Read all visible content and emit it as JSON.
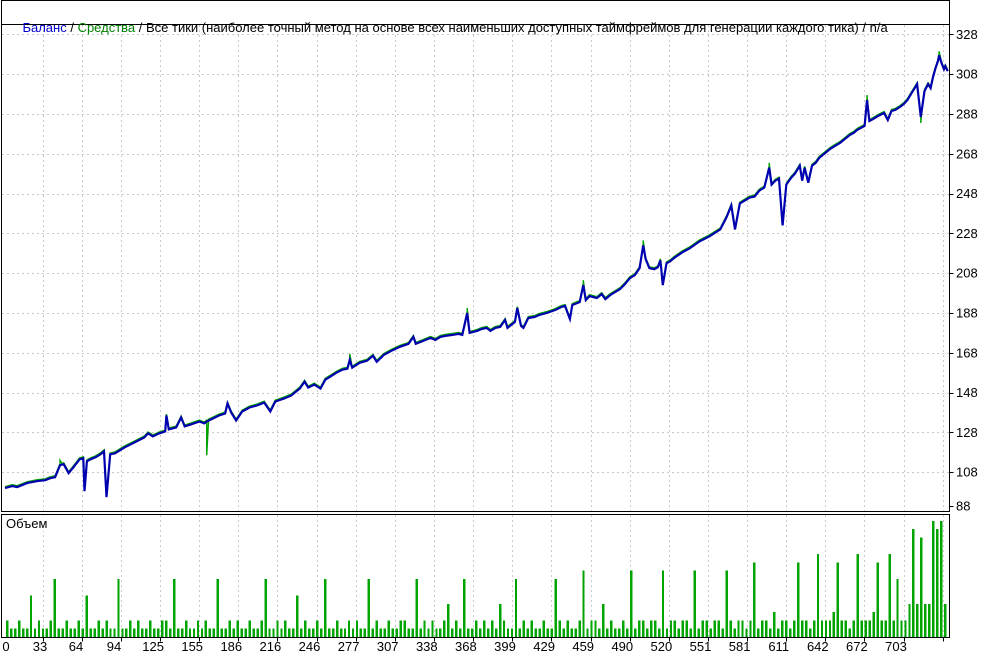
{
  "legend": {
    "balance": "Баланс",
    "equity": "Средства",
    "model": "Все тики (наиболее точный метод на основе всех наименьших доступных таймфреймов для генерации каждого тика)",
    "na": "n/a",
    "sep": " / "
  },
  "volume_panel": {
    "label": "Объем"
  },
  "colors": {
    "balance_line": "#0000b0",
    "equity_line": "#00a000",
    "volume_bar": "#00a400",
    "legend_balance": "#0000c8",
    "legend_equity": "#008000",
    "grid": "#c9c9c9",
    "border": "#000000"
  },
  "chart_data": {
    "type": "line+bar",
    "title": "Баланс / Средства / Все тики (наиболее точный метод на основе всех наименьших доступных таймфреймов для генерации каждого тика) / n/a",
    "x_axis": {
      "labels": [
        0,
        33,
        64,
        94,
        125,
        155,
        186,
        216,
        246,
        277,
        307,
        338,
        368,
        399,
        429,
        459,
        490,
        520,
        551,
        581,
        611,
        642,
        672,
        703
      ],
      "min": 0,
      "max": 771
    },
    "y_axis": {
      "labels": [
        88,
        108,
        128,
        148,
        168,
        188,
        208,
        228,
        248,
        268,
        288,
        308,
        328
      ],
      "min": 88,
      "max": 328
    },
    "grid": "dashed",
    "legend_position": "top-left",
    "series": [
      {
        "name": "Баланс",
        "color": "#0000b0",
        "points": [
          [
            0,
            100
          ],
          [
            6,
            101
          ],
          [
            10,
            100.5
          ],
          [
            18,
            102.5
          ],
          [
            26,
            103.5
          ],
          [
            33,
            104
          ],
          [
            37,
            105
          ],
          [
            41,
            105.5
          ],
          [
            45,
            111.5
          ],
          [
            48,
            112
          ],
          [
            52,
            107.5
          ],
          [
            56,
            110.5
          ],
          [
            61,
            114.5
          ],
          [
            64,
            115
          ],
          [
            65,
            98.5
          ],
          [
            67,
            113.5
          ],
          [
            70,
            114.5
          ],
          [
            74,
            115.5
          ],
          [
            78,
            117
          ],
          [
            81,
            118.5
          ],
          [
            83,
            95.5
          ],
          [
            86,
            117
          ],
          [
            90,
            117.5
          ],
          [
            98,
            120.5
          ],
          [
            106,
            123
          ],
          [
            114,
            125.5
          ],
          [
            117,
            127.5
          ],
          [
            121,
            126
          ],
          [
            126,
            127.5
          ],
          [
            131,
            128.5
          ],
          [
            132,
            136.5
          ],
          [
            134,
            129.5
          ],
          [
            140,
            130.5
          ],
          [
            144,
            135.5
          ],
          [
            147,
            131
          ],
          [
            152,
            132
          ],
          [
            159,
            133.5
          ],
          [
            163,
            132.5
          ],
          [
            165,
            133.5
          ],
          [
            170,
            135
          ],
          [
            175,
            136.5
          ],
          [
            180,
            137.5
          ],
          [
            182,
            142.5
          ],
          [
            185,
            138
          ],
          [
            189,
            134
          ],
          [
            194,
            138.5
          ],
          [
            200,
            140.5
          ],
          [
            206,
            141.5
          ],
          [
            212,
            143
          ],
          [
            217,
            138.5
          ],
          [
            221,
            143.5
          ],
          [
            228,
            145
          ],
          [
            234,
            146.5
          ],
          [
            241,
            150
          ],
          [
            245,
            153.5
          ],
          [
            248,
            150.5
          ],
          [
            253,
            152
          ],
          [
            258,
            150
          ],
          [
            262,
            154.5
          ],
          [
            266,
            156
          ],
          [
            271,
            158
          ],
          [
            276,
            159.5
          ],
          [
            280,
            160
          ],
          [
            282,
            164.5
          ],
          [
            284,
            160.5
          ],
          [
            290,
            163
          ],
          [
            296,
            164
          ],
          [
            301,
            166.5
          ],
          [
            304,
            163.5
          ],
          [
            310,
            167
          ],
          [
            316,
            169
          ],
          [
            323,
            171
          ],
          [
            330,
            172.5
          ],
          [
            334,
            176
          ],
          [
            336,
            172.5
          ],
          [
            342,
            174
          ],
          [
            348,
            175.5
          ],
          [
            352,
            174.5
          ],
          [
            356,
            176
          ],
          [
            360,
            176.5
          ],
          [
            366,
            177
          ],
          [
            371,
            177.5
          ],
          [
            374,
            177
          ],
          [
            378,
            188
          ],
          [
            380,
            178
          ],
          [
            386,
            179
          ],
          [
            390,
            180
          ],
          [
            394,
            180.5
          ],
          [
            397,
            179
          ],
          [
            401,
            180.5
          ],
          [
            405,
            181
          ],
          [
            409,
            184.5
          ],
          [
            411,
            180.5
          ],
          [
            414,
            182
          ],
          [
            417,
            183.5
          ],
          [
            419,
            190.5
          ],
          [
            422,
            181.5
          ],
          [
            424,
            180.5
          ],
          [
            428,
            185.5
          ],
          [
            433,
            186
          ],
          [
            437,
            187
          ],
          [
            443,
            188
          ],
          [
            450,
            189.5
          ],
          [
            455,
            191
          ],
          [
            458,
            191.5
          ],
          [
            462,
            185
          ],
          [
            464,
            192
          ],
          [
            470,
            193.5
          ],
          [
            473,
            202
          ],
          [
            475,
            194.5
          ],
          [
            478,
            196.5
          ],
          [
            484,
            195.5
          ],
          [
            488,
            197.5
          ],
          [
            491,
            195
          ],
          [
            495,
            197
          ],
          [
            499,
            198.5
          ],
          [
            503,
            200
          ],
          [
            507,
            202.5
          ],
          [
            511,
            205.5
          ],
          [
            515,
            207
          ],
          [
            519,
            210.5
          ],
          [
            522,
            222
          ],
          [
            524,
            215
          ],
          [
            527,
            210.5
          ],
          [
            531,
            210
          ],
          [
            534,
            211
          ],
          [
            536,
            214.5
          ],
          [
            538,
            202
          ],
          [
            541,
            213
          ],
          [
            544,
            214
          ],
          [
            548,
            216
          ],
          [
            554,
            218.5
          ],
          [
            560,
            220.5
          ],
          [
            568,
            224
          ],
          [
            576,
            226.5
          ],
          [
            585,
            230
          ],
          [
            590,
            236
          ],
          [
            594,
            242
          ],
          [
            597,
            230
          ],
          [
            601,
            243
          ],
          [
            605,
            244.5
          ],
          [
            609,
            246
          ],
          [
            613,
            246.5
          ],
          [
            617,
            249.5
          ],
          [
            621,
            251
          ],
          [
            625,
            261
          ],
          [
            627,
            252.5
          ],
          [
            630,
            254.5
          ],
          [
            633,
            255.5
          ],
          [
            636,
            232
          ],
          [
            639,
            252.5
          ],
          [
            643,
            256
          ],
          [
            646,
            258
          ],
          [
            650,
            262
          ],
          [
            652,
            254.5
          ],
          [
            654,
            261
          ],
          [
            657,
            253.5
          ],
          [
            660,
            262
          ],
          [
            663,
            263.5
          ],
          [
            666,
            266
          ],
          [
            670,
            268
          ],
          [
            675,
            270.5
          ],
          [
            679,
            272
          ],
          [
            683,
            273.5
          ],
          [
            687,
            275.5
          ],
          [
            691,
            277.5
          ],
          [
            694,
            278.5
          ],
          [
            697,
            280
          ],
          [
            700,
            281
          ],
          [
            703,
            282
          ],
          [
            705,
            295
          ],
          [
            707,
            284.5
          ],
          [
            710,
            285.5
          ],
          [
            714,
            287
          ],
          [
            719,
            288.5
          ],
          [
            722,
            285
          ],
          [
            725,
            289.5
          ],
          [
            728,
            290
          ],
          [
            732,
            291.5
          ],
          [
            735,
            293
          ],
          [
            738,
            295
          ],
          [
            742,
            299
          ],
          [
            744,
            301
          ],
          [
            746,
            303
          ],
          [
            749,
            286.5
          ],
          [
            752,
            299.5
          ],
          [
            755,
            303
          ],
          [
            757,
            301
          ],
          [
            759,
            306.5
          ],
          [
            761,
            311
          ],
          [
            763,
            314.5
          ],
          [
            764,
            317.5
          ],
          [
            766,
            313.5
          ],
          [
            768,
            310.5
          ],
          [
            769,
            312
          ],
          [
            771,
            309.5
          ]
        ]
      },
      {
        "name": "Средства",
        "color": "#00a000",
        "offset": 0.7,
        "deviation_points": [
          [
            45,
            114
          ],
          [
            165,
            116.5
          ],
          [
            282,
            167.5
          ],
          [
            378,
            190.5
          ],
          [
            473,
            204.5
          ],
          [
            522,
            224.5
          ],
          [
            625,
            263.5
          ],
          [
            705,
            297.5
          ],
          [
            749,
            283.5
          ],
          [
            764,
            319.5
          ]
        ]
      }
    ],
    "volume": {
      "name": "Объем",
      "type": "bar",
      "color": "#00a400",
      "values": [
        2,
        1,
        1,
        2,
        1,
        1,
        5,
        1,
        2,
        1,
        1,
        2,
        7,
        1,
        1,
        2,
        1,
        1,
        2,
        1,
        5,
        1,
        1,
        2,
        1,
        2,
        1,
        1,
        7,
        1,
        1,
        2,
        1,
        2,
        1,
        1,
        2,
        1,
        1,
        2,
        2,
        1,
        7,
        1,
        1,
        2,
        1,
        1,
        2,
        1,
        2,
        1,
        1,
        7,
        1,
        1,
        2,
        1,
        2,
        1,
        1,
        2,
        1,
        1,
        2,
        7,
        1,
        1,
        2,
        1,
        2,
        1,
        1,
        5,
        1,
        2,
        1,
        1,
        2,
        1,
        7,
        1,
        1,
        2,
        1,
        1,
        2,
        1,
        2,
        1,
        1,
        7,
        1,
        2,
        1,
        1,
        2,
        1,
        1,
        2,
        2,
        1,
        1,
        7,
        1,
        2,
        1,
        2,
        1,
        1,
        2,
        4,
        1,
        2,
        1,
        7,
        1,
        1,
        2,
        1,
        2,
        1,
        2,
        1,
        4,
        2,
        1,
        1,
        7,
        1,
        2,
        1,
        2,
        1,
        1,
        2,
        1,
        1,
        7,
        2,
        1,
        2,
        1,
        1,
        2,
        8,
        1,
        2,
        2,
        1,
        4,
        1,
        2,
        1,
        1,
        2,
        1,
        8,
        1,
        2,
        2,
        1,
        2,
        2,
        1,
        8,
        1,
        2,
        2,
        1,
        2,
        2,
        1,
        8,
        1,
        2,
        2,
        1,
        2,
        2,
        1,
        8,
        2,
        1,
        2,
        2,
        1,
        2,
        9,
        1,
        2,
        2,
        1,
        3,
        1,
        2,
        2,
        1,
        2,
        9,
        2,
        2,
        1,
        2,
        10,
        2,
        2,
        2,
        3,
        9,
        2,
        2,
        1,
        2,
        10,
        2,
        2,
        2,
        3,
        9,
        2,
        2,
        10,
        2,
        7,
        2,
        2,
        4,
        13,
        4,
        12,
        4,
        4,
        14,
        13,
        14,
        4
      ]
    }
  }
}
